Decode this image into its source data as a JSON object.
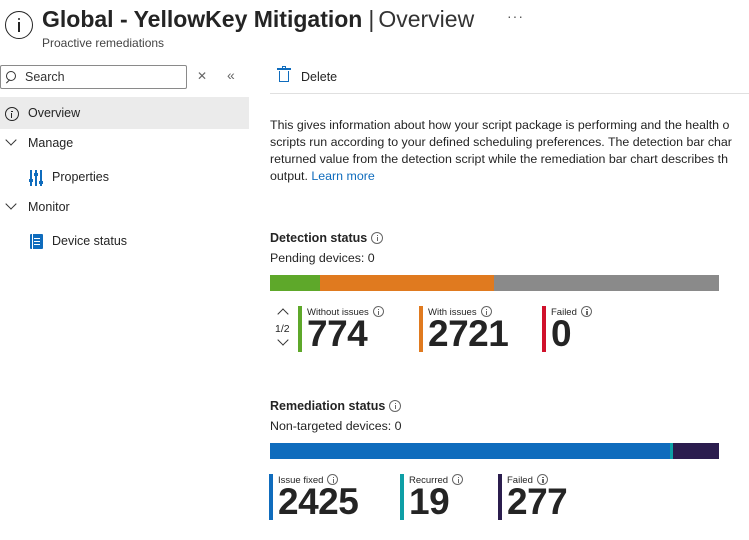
{
  "header": {
    "title_main": "Global - YellowKey Mitigation",
    "title_sep": "|",
    "title_page": "Overview",
    "more_label": "···",
    "subtitle": "Proactive remediations"
  },
  "sidebar": {
    "search_placeholder": "Search",
    "clear_label": "✕",
    "collapse_label": "«",
    "items": [
      {
        "label": "Overview",
        "active": true
      },
      {
        "label": "Manage"
      },
      {
        "label": "Properties"
      },
      {
        "label": "Monitor"
      },
      {
        "label": "Device status"
      }
    ]
  },
  "toolbar": {
    "delete_label": "Delete"
  },
  "description": {
    "line1": "This gives information about how your script package is performing and the health o",
    "line2": "scripts run according to your defined scheduling preferences. The detection bar char",
    "line3": "returned value from the detection script while the remediation bar chart describes th",
    "line4": "output.",
    "learn_more": "Learn more"
  },
  "detection": {
    "title": "Detection status",
    "pending": "Pending devices: 0",
    "pager": "1/2",
    "segments": [
      {
        "value": 774,
        "color": "#5ea82a"
      },
      {
        "value": 2721,
        "color": "#e07a1f"
      },
      {
        "value": 3500,
        "color": "#8a8a8a"
      }
    ],
    "stats": [
      {
        "label": "Without issues",
        "value": "774",
        "color": "#5ea82a"
      },
      {
        "label": "With issues",
        "value": "2721",
        "color": "#e07a1f"
      },
      {
        "label": "Failed",
        "value": "0",
        "color": "#d0112b"
      }
    ]
  },
  "remediation": {
    "title": "Remediation status",
    "non_targeted": "Non-targeted devices: 0",
    "segments": [
      {
        "value": 2425,
        "color": "#0f6cbd"
      },
      {
        "value": 19,
        "color": "#0e9fa6"
      },
      {
        "value": 277,
        "color": "#2b1d4e"
      }
    ],
    "stats": [
      {
        "label": "Issue fixed",
        "value": "2425",
        "color": "#0f6cbd"
      },
      {
        "label": "Recurred",
        "value": "19",
        "color": "#0e9fa6"
      },
      {
        "label": "Failed",
        "value": "277",
        "color": "#2b1d4e"
      }
    ]
  }
}
